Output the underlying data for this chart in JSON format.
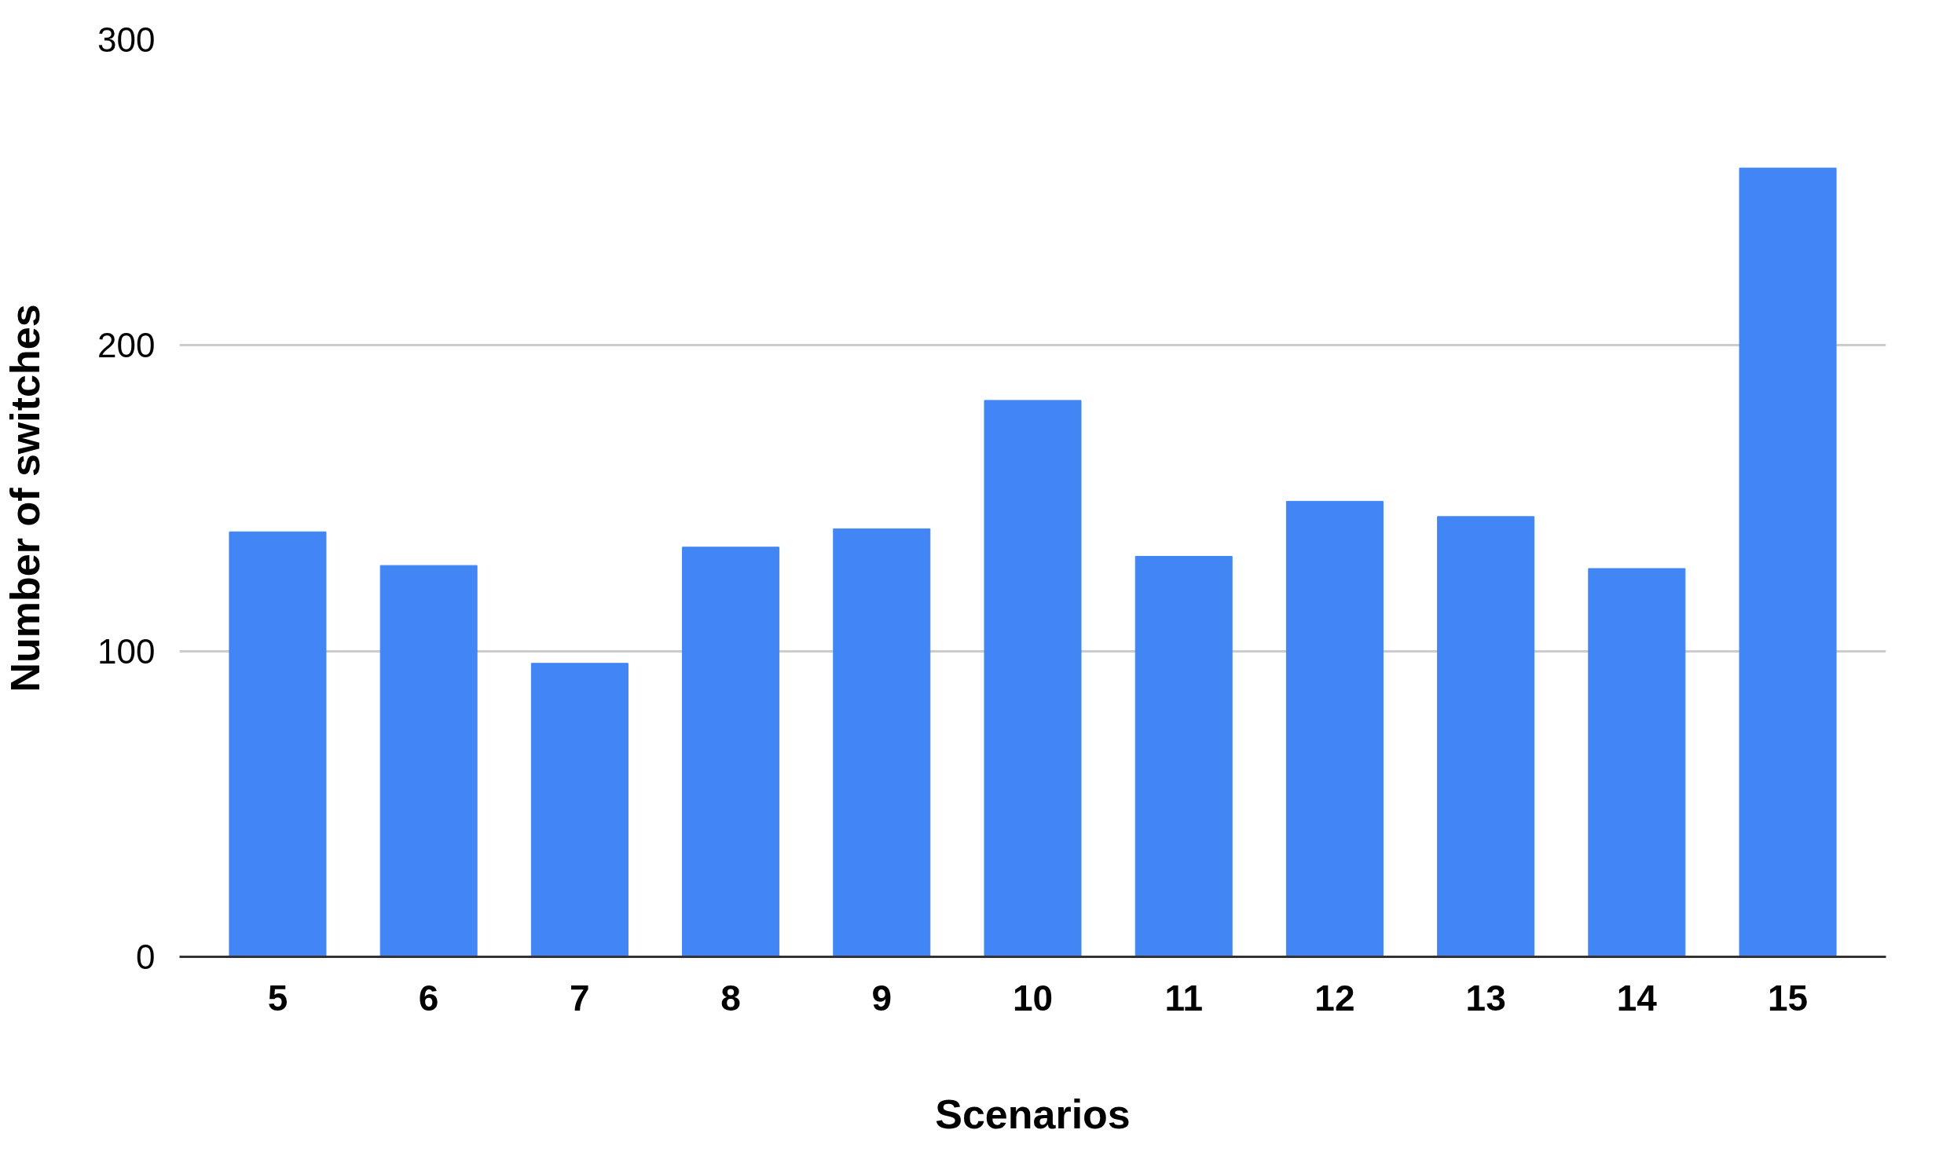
{
  "chart_data": {
    "type": "bar",
    "xlabel": "Scenarios",
    "ylabel": "Number of switches",
    "categories": [
      "5",
      "6",
      "7",
      "8",
      "9",
      "10",
      "11",
      "12",
      "13",
      "14",
      "15"
    ],
    "values": [
      139,
      128,
      96,
      134,
      140,
      182,
      131,
      149,
      144,
      127,
      258
    ],
    "color": "#4285f4",
    "ylim": [
      0,
      300
    ],
    "yticks": [
      0,
      100,
      200,
      300
    ],
    "grid": "y"
  }
}
